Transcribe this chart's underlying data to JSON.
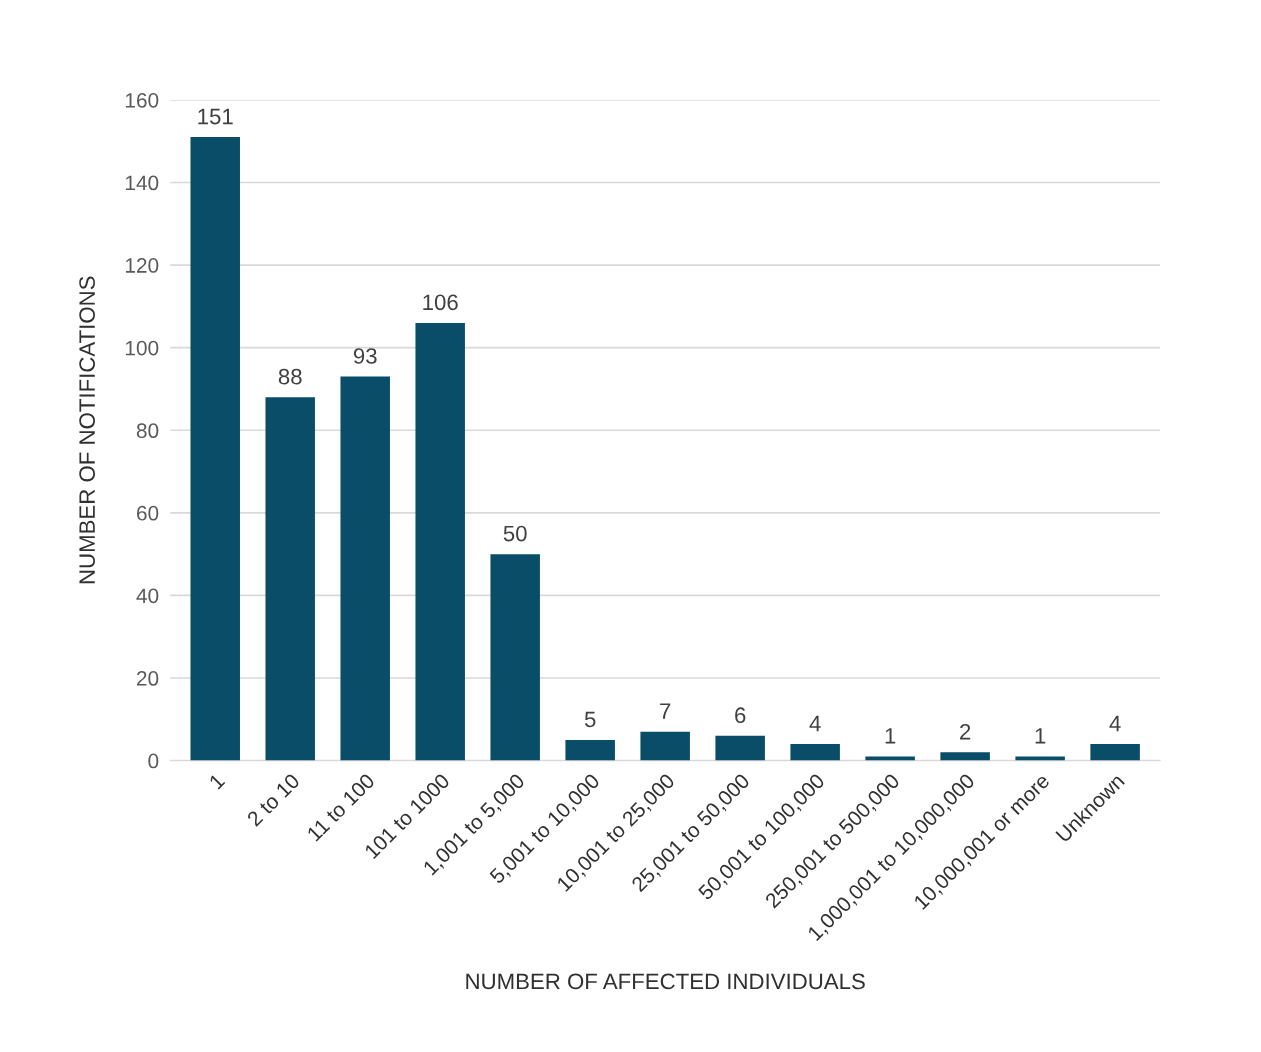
{
  "chart_data": {
    "type": "bar",
    "xlabel": "NUMBER OF AFFECTED INDIVIDUALS",
    "ylabel": "NUMBER OF NOTIFICATIONS",
    "categories": [
      "1",
      "2 to 10",
      "11 to 100",
      "101 to 1000",
      "1,001 to 5,000",
      "5,001 to 10,000",
      "10,001 to 25,000",
      "25,001 to 50,000",
      "50,001 to 100,000",
      "250,001 to 500,000",
      "1,000,001 to 10,000,000",
      "10,000,001 or more",
      "Unknown"
    ],
    "values": [
      151,
      88,
      93,
      106,
      50,
      5,
      7,
      6,
      4,
      1,
      2,
      1,
      4
    ],
    "color": "#0a4d68",
    "ylim": [
      0,
      160
    ],
    "yticks": [
      0,
      20,
      40,
      60,
      80,
      100,
      120,
      140,
      160
    ],
    "grid": "y",
    "data_labels": true,
    "legend": false
  }
}
